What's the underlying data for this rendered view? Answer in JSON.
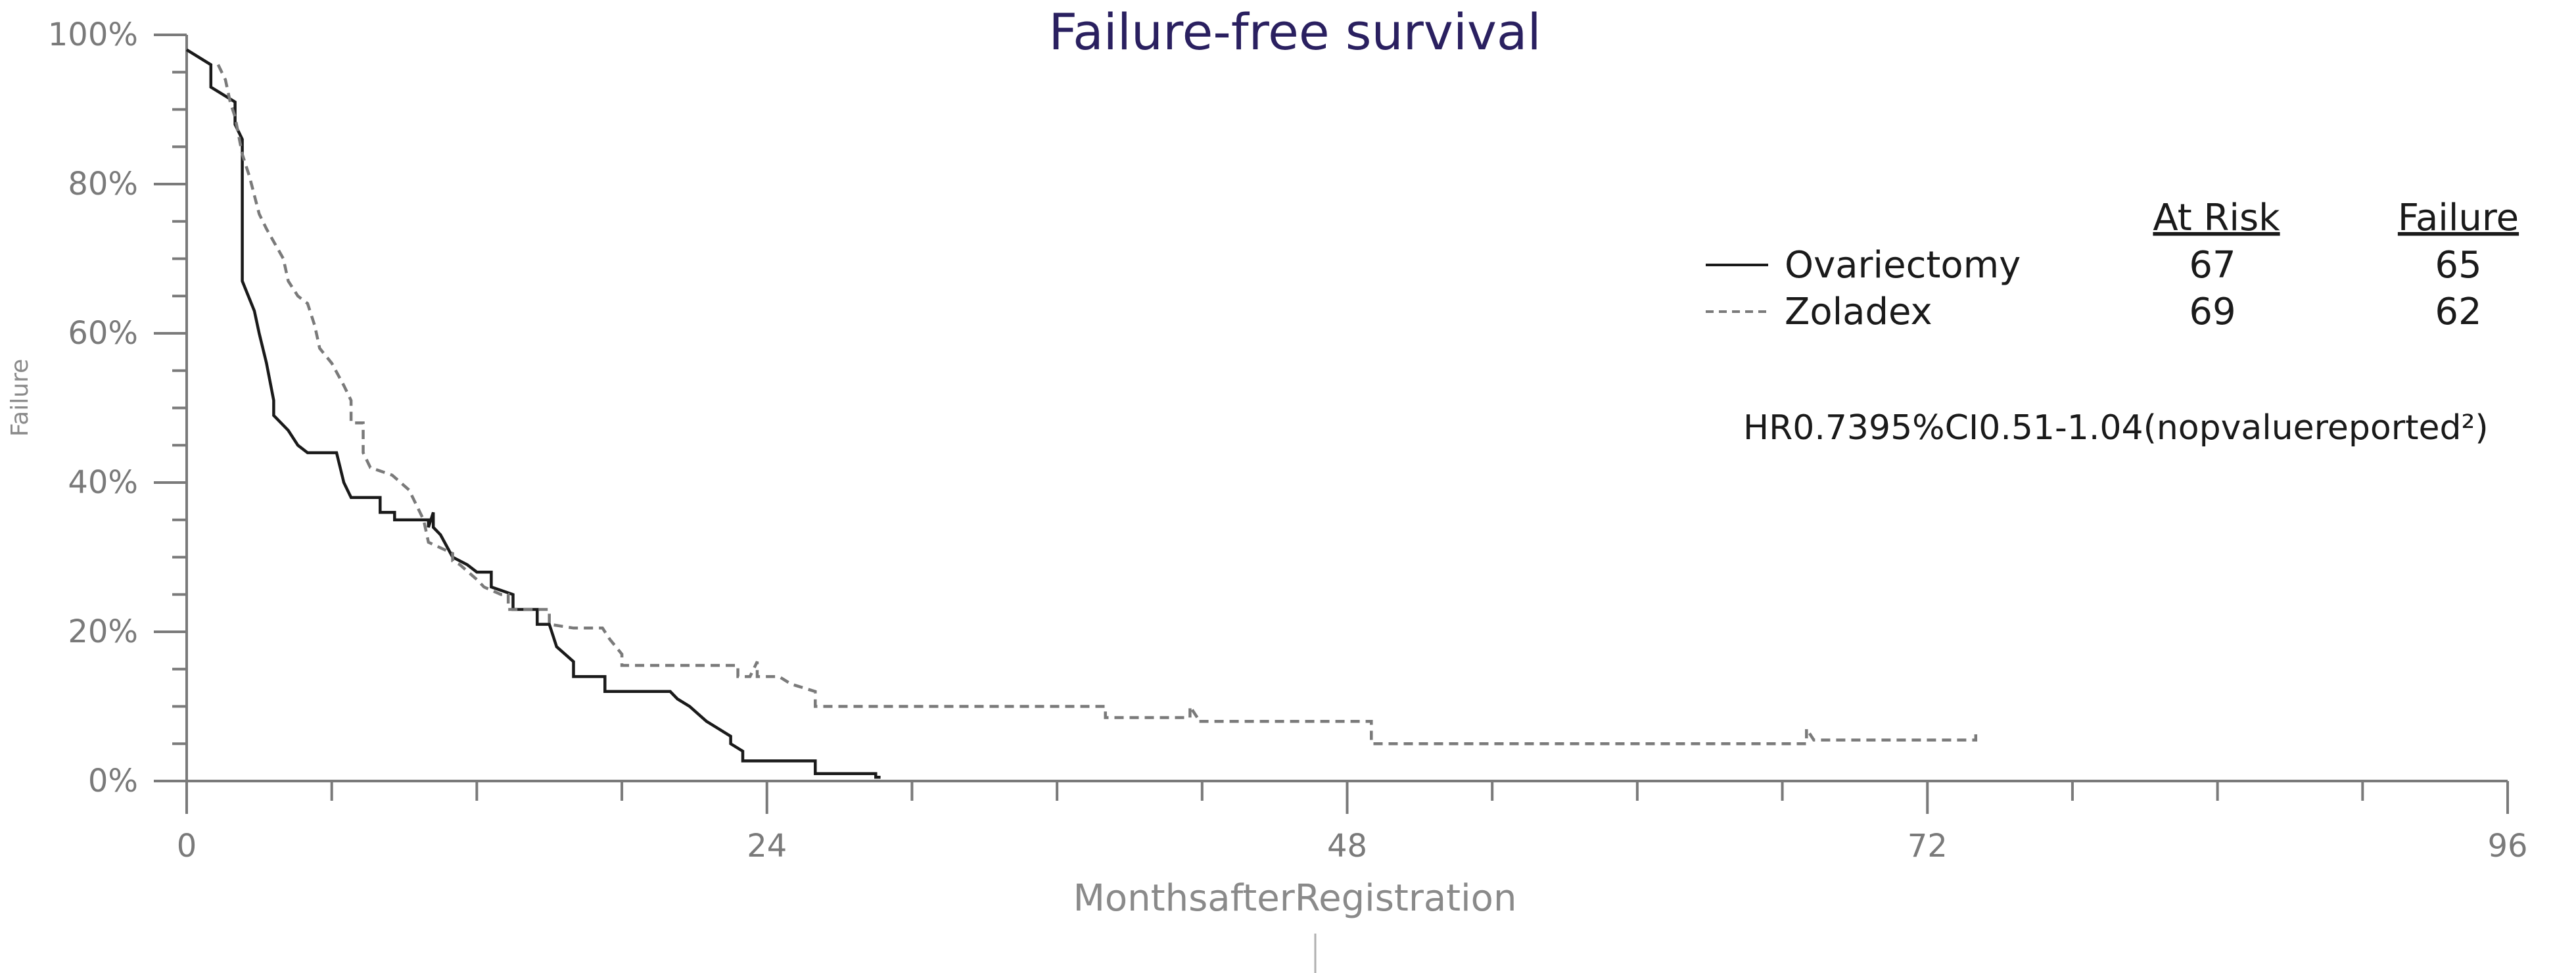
{
  "chart_data": {
    "type": "line",
    "title": "Failure-free survival",
    "xlabel": "MonthsafterRegistration",
    "ylabel": "Failure",
    "xlim": [
      0,
      96
    ],
    "ylim": [
      0,
      100
    ],
    "x_ticks": [
      0,
      24,
      48,
      72,
      96
    ],
    "x_tick_labels": [
      "0",
      "24",
      "48",
      "72",
      "96"
    ],
    "y_ticks": [
      0,
      20,
      40,
      60,
      80,
      100
    ],
    "y_tick_labels": [
      "0%",
      "20%",
      "40%",
      "60%",
      "80%",
      "100%"
    ],
    "grid": false,
    "legend_position": "top-right",
    "table_headers": {
      "at_risk": "At Risk",
      "failure": "Failure"
    },
    "annotation": "HR0.7395%CI0.51-1.04(nopvaluereported²)",
    "series": [
      {
        "name": "Ovariectomy",
        "style": "solid",
        "color": "#1a1a1a",
        "at_risk": "67",
        "failure": "65",
        "points": [
          [
            0,
            98
          ],
          [
            1,
            96
          ],
          [
            1,
            93
          ],
          [
            1.5,
            92
          ],
          [
            2,
            91
          ],
          [
            2,
            88
          ],
          [
            2.3,
            86
          ],
          [
            2.3,
            84
          ],
          [
            2.3,
            67
          ],
          [
            2.8,
            63
          ],
          [
            3,
            60
          ],
          [
            3.3,
            56
          ],
          [
            3.6,
            51
          ],
          [
            3.6,
            49
          ],
          [
            4.2,
            47
          ],
          [
            4.6,
            45
          ],
          [
            5,
            44
          ],
          [
            6.2,
            44
          ],
          [
            6.5,
            40
          ],
          [
            6.8,
            38
          ],
          [
            7.5,
            38
          ],
          [
            7.5,
            38
          ],
          [
            8,
            38
          ],
          [
            8,
            36
          ],
          [
            8.6,
            36
          ],
          [
            8.6,
            35
          ],
          [
            10,
            35
          ],
          [
            10,
            34
          ],
          [
            10.2,
            36
          ],
          [
            10.2,
            34
          ],
          [
            10.5,
            33
          ],
          [
            11,
            30
          ],
          [
            11.6,
            29
          ],
          [
            12,
            28
          ],
          [
            12.6,
            28
          ],
          [
            12.6,
            26
          ],
          [
            13.5,
            25
          ],
          [
            13.5,
            23
          ],
          [
            14.5,
            23
          ],
          [
            14.5,
            21
          ],
          [
            15,
            21
          ],
          [
            15.3,
            18
          ],
          [
            16,
            16
          ],
          [
            16,
            14
          ],
          [
            17.3,
            14
          ],
          [
            17.3,
            12
          ],
          [
            20,
            12
          ],
          [
            20.3,
            11
          ],
          [
            20.8,
            10
          ],
          [
            21.5,
            8
          ],
          [
            22,
            7
          ],
          [
            22.5,
            6
          ],
          [
            22.5,
            5
          ],
          [
            23,
            4
          ],
          [
            23,
            2.7
          ],
          [
            26,
            2.7
          ],
          [
            26,
            1
          ],
          [
            28.5,
            1
          ],
          [
            28.5,
            0.5
          ],
          [
            28.7,
            0.5
          ]
        ]
      },
      {
        "name": "Zoladex",
        "style": "dashed",
        "color": "#7a7a7a",
        "at_risk": "69",
        "failure": "62",
        "points": [
          [
            1.3,
            96
          ],
          [
            1.6,
            94
          ],
          [
            1.8,
            91
          ],
          [
            2,
            89
          ],
          [
            2.3,
            84
          ],
          [
            2.6,
            81
          ],
          [
            3,
            76
          ],
          [
            3.3,
            74
          ],
          [
            4,
            70
          ],
          [
            4.2,
            67
          ],
          [
            4.6,
            65
          ],
          [
            5,
            64
          ],
          [
            5.3,
            61
          ],
          [
            5.5,
            58
          ],
          [
            6,
            56
          ],
          [
            6.5,
            53
          ],
          [
            6.8,
            51
          ],
          [
            6.8,
            48
          ],
          [
            7.3,
            48
          ],
          [
            7.3,
            44
          ],
          [
            7.6,
            42
          ],
          [
            8.5,
            41
          ],
          [
            9.2,
            39
          ],
          [
            9.5,
            37
          ],
          [
            9.8,
            35
          ],
          [
            10,
            32
          ],
          [
            11,
            30.5
          ],
          [
            11,
            29.5
          ],
          [
            11.3,
            29
          ],
          [
            12,
            27
          ],
          [
            12.3,
            26
          ],
          [
            13,
            25
          ],
          [
            13.3,
            25
          ],
          [
            13.3,
            23
          ],
          [
            15,
            23
          ],
          [
            15,
            21
          ],
          [
            16,
            20.5
          ],
          [
            17.2,
            20.5
          ],
          [
            17.5,
            19
          ],
          [
            18,
            17
          ],
          [
            18,
            15.5
          ],
          [
            22.8,
            15.5
          ],
          [
            22.8,
            14
          ],
          [
            23.3,
            14
          ],
          [
            23.6,
            16
          ],
          [
            23.6,
            14
          ],
          [
            24.5,
            14
          ],
          [
            25,
            13
          ],
          [
            26,
            12
          ],
          [
            26,
            10
          ],
          [
            38,
            10
          ],
          [
            38,
            8.5
          ],
          [
            41.5,
            8.5
          ],
          [
            41.5,
            10
          ],
          [
            41.8,
            8.5
          ],
          [
            41.8,
            8
          ],
          [
            49,
            8
          ],
          [
            49,
            5
          ],
          [
            67,
            5
          ],
          [
            67,
            7
          ],
          [
            67.3,
            5.5
          ],
          [
            74,
            5.5
          ],
          [
            74,
            7
          ]
        ]
      }
    ]
  }
}
